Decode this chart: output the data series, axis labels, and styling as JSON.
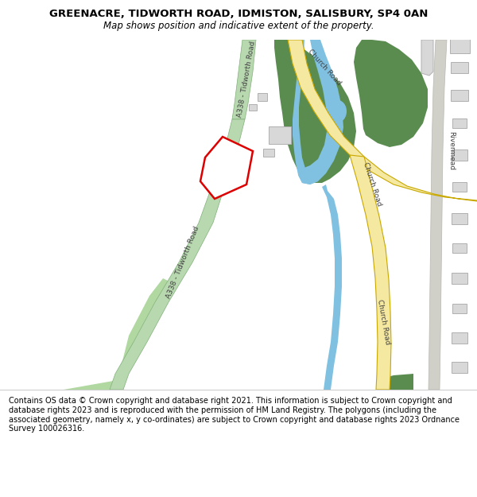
{
  "title": "GREENACRE, TIDWORTH ROAD, IDMISTON, SALISBURY, SP4 0AN",
  "subtitle": "Map shows position and indicative extent of the property.",
  "footer": "Contains OS data © Crown copyright and database right 2021. This information is subject to Crown copyright and database rights 2023 and is reproduced with the permission of HM Land Registry. The polygons (including the associated geometry, namely x, y co-ordinates) are subject to Crown copyright and database rights 2023 Ordnance Survey 100026316.",
  "road_yellow": "#f5e8a0",
  "road_yellow_border": "#c8a800",
  "road_green_fill": "#b8d8b0",
  "road_green_border": "#80b078",
  "river_blue": "#80c0e0",
  "green_dark": "#5a8c50",
  "green_light": "#b0d8a0",
  "plot_red": "#dd0000",
  "bld_fill": "#d8d8d8",
  "bld_edge": "#b0b0b0",
  "road_gray": "#d0d0c8",
  "road_gray_border": "#b8b8b0",
  "text_color": "#404040",
  "label_a338": "A338 - Tidworth Road",
  "label_church": "Church Road",
  "label_rivermead": "Rivermead"
}
